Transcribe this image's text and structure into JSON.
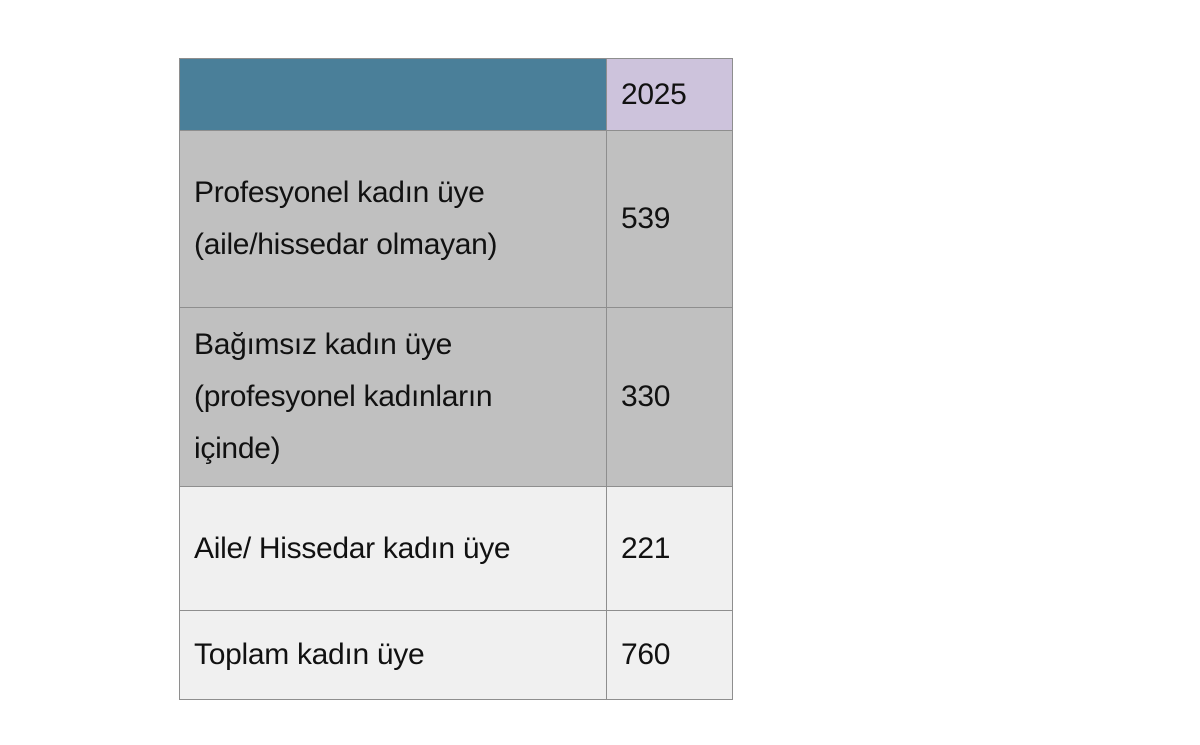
{
  "table": {
    "header": {
      "label": "",
      "year": "2025"
    },
    "colors": {
      "header_label_bg": "#4a7f99",
      "header_year_bg": "#cdc3dc",
      "dark_row_bg": "#c0c0c0",
      "light_row_bg": "#f0f0f0"
    },
    "rows": [
      {
        "label": "Profesyonel kadın üye (aile/hissedar olmayan)",
        "value": "539"
      },
      {
        "label": "Bağımsız kadın üye (profesyonel kadınların içinde)",
        "value": "330"
      },
      {
        "label": "Aile/ Hissedar kadın üye",
        "value": "221"
      },
      {
        "label": "Toplam kadın üye",
        "value": "760"
      }
    ]
  }
}
